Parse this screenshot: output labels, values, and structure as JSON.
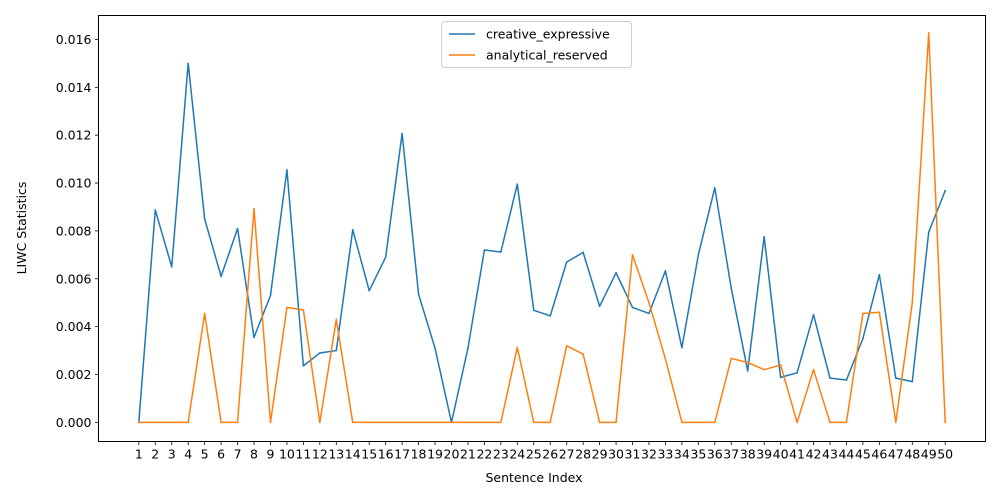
{
  "chart_data": {
    "type": "line",
    "xlabel": "Sentence Index",
    "ylabel": "LIWC Statistics",
    "x": [
      1,
      2,
      3,
      4,
      5,
      6,
      7,
      8,
      9,
      10,
      11,
      12,
      13,
      14,
      15,
      16,
      17,
      18,
      19,
      20,
      21,
      22,
      23,
      24,
      25,
      26,
      27,
      28,
      29,
      30,
      31,
      32,
      33,
      34,
      35,
      36,
      37,
      38,
      39,
      40,
      41,
      42,
      43,
      44,
      45,
      46,
      47,
      48,
      49,
      50
    ],
    "xlim": [
      -1.45,
      52.45
    ],
    "ylim": [
      -0.0008,
      0.017
    ],
    "yticks": [
      0.0,
      0.002,
      0.004,
      0.006,
      0.008,
      0.01,
      0.012,
      0.014,
      0.016
    ],
    "ytick_labels": [
      "0.000",
      "0.002",
      "0.004",
      "0.006",
      "0.008",
      "0.010",
      "0.012",
      "0.014",
      "0.016"
    ],
    "legend_position": "upper center",
    "series": [
      {
        "name": "creative_expressive",
        "color": "#1f77b4",
        "values": [
          0.0,
          0.00887,
          0.0065,
          0.015,
          0.0085,
          0.0061,
          0.0081,
          0.00355,
          0.0053,
          0.01055,
          0.00236,
          0.0029,
          0.003,
          0.00805,
          0.0055,
          0.0069,
          0.01207,
          0.00535,
          0.0031,
          0.0,
          0.0031,
          0.0072,
          0.00712,
          0.00995,
          0.00468,
          0.00445,
          0.0067,
          0.0071,
          0.00485,
          0.00625,
          0.0048,
          0.00455,
          0.00633,
          0.00312,
          0.007,
          0.0098,
          0.0056,
          0.00215,
          0.00776,
          0.00188,
          0.00207,
          0.0045,
          0.00185,
          0.00177,
          0.0035,
          0.00617,
          0.00185,
          0.0017,
          0.00795,
          0.00968
        ]
      },
      {
        "name": "analytical_reserved",
        "color": "#ff7f0e",
        "values": [
          0.0,
          0.0,
          0.0,
          0.0,
          0.00455,
          0.0,
          0.0,
          0.00893,
          0.0,
          0.0048,
          0.0047,
          0.0,
          0.0043,
          0.0,
          0.0,
          0.0,
          0.0,
          0.0,
          0.0,
          0.0,
          0.0,
          0.0,
          0.0,
          0.00313,
          0.0,
          0.0,
          0.0032,
          0.00285,
          0.0,
          0.0,
          0.007,
          0.005,
          0.00265,
          0.0,
          0.0,
          0.0,
          0.00267,
          0.0025,
          0.0022,
          0.0024,
          0.0,
          0.0022,
          0.0,
          0.0,
          0.00455,
          0.0046,
          0.0,
          0.005,
          0.01627,
          0.0
        ]
      }
    ]
  }
}
